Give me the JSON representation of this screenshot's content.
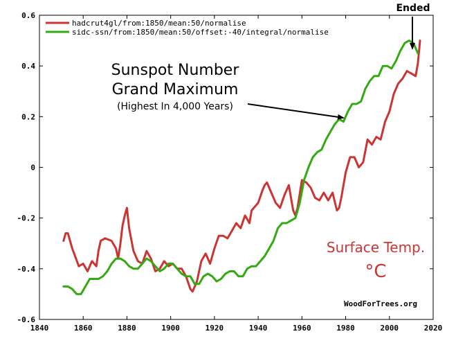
{
  "chart_data": {
    "type": "line",
    "xlim": [
      1840,
      2020
    ],
    "ylim": [
      -0.6,
      0.6
    ],
    "x_ticks": [
      "1840",
      "1860",
      "1880",
      "1900",
      "1920",
      "1940",
      "1960",
      "1980",
      "2000",
      "2020"
    ],
    "y_ticks": [
      "-0.6",
      "-0.4",
      "-0.2",
      "0",
      "0.2",
      "0.4",
      "0.6"
    ],
    "grid": false,
    "legend_position": "top-left",
    "series": [
      {
        "name": "hadcrut4gl/from:1850/mean:50/normalise",
        "color": "#cc3333",
        "x": [
          1851,
          1852,
          1853,
          1855,
          1858,
          1860,
          1862,
          1864,
          1866,
          1867,
          1868,
          1870,
          1873,
          1875,
          1876,
          1877,
          1878,
          1879,
          1880,
          1881,
          1883,
          1885,
          1887,
          1889,
          1891,
          1893,
          1895,
          1897,
          1899,
          1901,
          1903,
          1905,
          1907,
          1909,
          1910,
          1912,
          1914,
          1916,
          1917,
          1918,
          1920,
          1922,
          1924,
          1926,
          1928,
          1930,
          1932,
          1934,
          1936,
          1937,
          1938,
          1940,
          1942,
          1943,
          1944,
          1946,
          1948,
          1950,
          1952,
          1954,
          1956,
          1957,
          1958,
          1960,
          1962,
          1964,
          1966,
          1968,
          1970,
          1972,
          1974,
          1976,
          1977,
          1978,
          1980,
          1982,
          1984,
          1986,
          1988,
          1990,
          1992,
          1994,
          1996,
          1998,
          2000,
          2002,
          2004,
          2006,
          2008,
          2010,
          2012,
          2013,
          2014
        ],
        "y": [
          -0.29,
          -0.26,
          -0.26,
          -0.32,
          -0.39,
          -0.38,
          -0.41,
          -0.37,
          -0.39,
          -0.33,
          -0.29,
          -0.28,
          -0.29,
          -0.32,
          -0.36,
          -0.3,
          -0.23,
          -0.19,
          -0.16,
          -0.24,
          -0.33,
          -0.37,
          -0.38,
          -0.33,
          -0.36,
          -0.41,
          -0.4,
          -0.37,
          -0.39,
          -0.38,
          -0.4,
          -0.4,
          -0.43,
          -0.48,
          -0.49,
          -0.45,
          -0.37,
          -0.34,
          -0.36,
          -0.38,
          -0.32,
          -0.27,
          -0.27,
          -0.28,
          -0.25,
          -0.22,
          -0.24,
          -0.19,
          -0.22,
          -0.17,
          -0.16,
          -0.14,
          -0.09,
          -0.07,
          -0.06,
          -0.1,
          -0.14,
          -0.16,
          -0.11,
          -0.07,
          -0.17,
          -0.19,
          -0.16,
          -0.05,
          -0.06,
          -0.08,
          -0.12,
          -0.13,
          -0.1,
          -0.13,
          -0.1,
          -0.17,
          -0.16,
          -0.12,
          -0.02,
          0.04,
          0.04,
          0.0,
          0.02,
          0.11,
          0.09,
          0.12,
          0.11,
          0.18,
          0.22,
          0.29,
          0.33,
          0.35,
          0.38,
          0.37,
          0.36,
          0.41,
          0.5
        ]
      },
      {
        "name": "sidc-ssn/from:1850/mean:50/offset:-40/integral/normalise",
        "color": "#33aa11",
        "x": [
          1851,
          1853,
          1855,
          1857,
          1859,
          1861,
          1863,
          1865,
          1867,
          1869,
          1871,
          1873,
          1875,
          1877,
          1879,
          1881,
          1883,
          1885,
          1887,
          1889,
          1891,
          1893,
          1895,
          1897,
          1899,
          1901,
          1903,
          1905,
          1907,
          1909,
          1911,
          1913,
          1915,
          1917,
          1919,
          1921,
          1923,
          1925,
          1927,
          1929,
          1931,
          1933,
          1935,
          1937,
          1939,
          1941,
          1943,
          1945,
          1947,
          1949,
          1951,
          1953,
          1955,
          1957,
          1959,
          1961,
          1963,
          1965,
          1967,
          1969,
          1971,
          1973,
          1975,
          1977,
          1979,
          1981,
          1983,
          1985,
          1987,
          1989,
          1991,
          1993,
          1995,
          1997,
          1999,
          2001,
          2003,
          2005,
          2007,
          2009,
          2011,
          2013
        ],
        "y": [
          -0.47,
          -0.47,
          -0.48,
          -0.5,
          -0.5,
          -0.47,
          -0.44,
          -0.44,
          -0.44,
          -0.43,
          -0.41,
          -0.38,
          -0.36,
          -0.36,
          -0.37,
          -0.39,
          -0.4,
          -0.4,
          -0.38,
          -0.36,
          -0.37,
          -0.39,
          -0.41,
          -0.4,
          -0.38,
          -0.38,
          -0.4,
          -0.42,
          -0.43,
          -0.43,
          -0.46,
          -0.46,
          -0.43,
          -0.42,
          -0.43,
          -0.45,
          -0.44,
          -0.42,
          -0.41,
          -0.41,
          -0.43,
          -0.43,
          -0.4,
          -0.39,
          -0.39,
          -0.37,
          -0.35,
          -0.32,
          -0.29,
          -0.24,
          -0.22,
          -0.22,
          -0.21,
          -0.2,
          -0.14,
          -0.05,
          0.0,
          0.04,
          0.06,
          0.07,
          0.11,
          0.14,
          0.17,
          0.19,
          0.18,
          0.22,
          0.25,
          0.25,
          0.26,
          0.31,
          0.34,
          0.36,
          0.36,
          0.4,
          0.4,
          0.39,
          0.42,
          0.46,
          0.49,
          0.5,
          0.49,
          0.45
        ]
      }
    ],
    "annotations": {
      "grand_max_line1": "Sunspot Number",
      "grand_max_line2": "Grand Maximum",
      "grand_max_line3": "(Highest In 4,000 Years)",
      "ended": "Ended",
      "surface_line1": "Surface Temp.",
      "surface_line2": "°C",
      "watermark": "WoodForTrees.org"
    }
  }
}
